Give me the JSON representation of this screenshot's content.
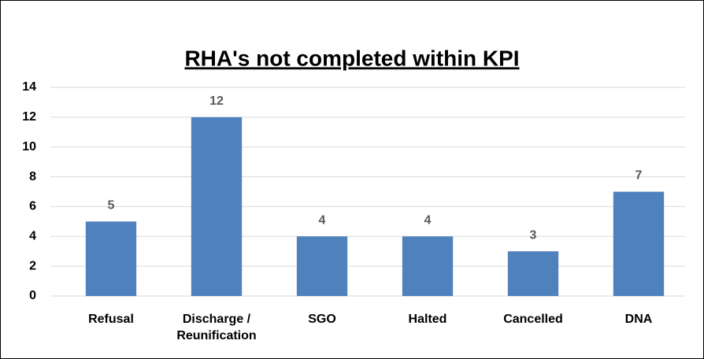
{
  "chart_data": {
    "type": "bar",
    "title": "RHA's not completed within KPI",
    "categories": [
      "Refusal",
      "Discharge / Reunification",
      "SGO",
      "Halted",
      "Cancelled",
      "DNA"
    ],
    "values": [
      5,
      12,
      4,
      4,
      3,
      7
    ],
    "color": "#4f81bd",
    "ylim": [
      0,
      14
    ],
    "yticks": [
      0,
      2,
      4,
      6,
      8,
      10,
      12,
      14
    ],
    "grid": true
  }
}
